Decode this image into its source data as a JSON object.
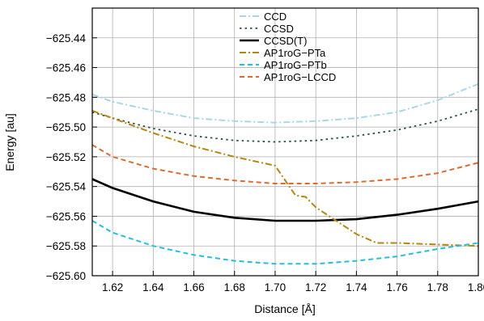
{
  "chart_data": {
    "type": "line",
    "title": "",
    "xlabel": "Distance [Å]",
    "ylabel": "Energy [au]",
    "xlim": [
      1.61,
      1.8
    ],
    "ylim": [
      -625.6,
      -625.42
    ],
    "xticks": [
      1.62,
      1.64,
      1.66,
      1.68,
      1.7,
      1.72,
      1.74,
      1.76,
      1.78,
      1.8
    ],
    "xtick_labels": [
      "1.62",
      "1.64",
      "1.66",
      "1.68",
      "1.70",
      "1.72",
      "1.74",
      "1.76",
      "1.78",
      "1.80"
    ],
    "yticks": [
      -625.44,
      -625.46,
      -625.48,
      -625.5,
      -625.52,
      -625.54,
      -625.56,
      -625.58,
      -625.6
    ],
    "ytick_labels": [
      "−625.44",
      "−625.46",
      "−625.48",
      "−625.50",
      "−625.52",
      "−625.54",
      "−625.56",
      "−625.58",
      "−625.60"
    ],
    "grid": true,
    "legend_position": "top-right",
    "series": [
      {
        "name": "CCD",
        "color": "#a8d8e8",
        "dash": "dashdot",
        "x": [
          1.61,
          1.62,
          1.64,
          1.66,
          1.68,
          1.7,
          1.72,
          1.74,
          1.76,
          1.78,
          1.8
        ],
        "y": [
          -625.478,
          -625.483,
          -625.489,
          -625.494,
          -625.496,
          -625.497,
          -625.496,
          -625.494,
          -625.49,
          -625.482,
          -625.471
        ]
      },
      {
        "name": "CCSD",
        "color": "#2f4f4f",
        "dash": "dot",
        "x": [
          1.61,
          1.62,
          1.64,
          1.66,
          1.68,
          1.7,
          1.72,
          1.74,
          1.76,
          1.78,
          1.8
        ],
        "y": [
          -625.49,
          -625.494,
          -625.501,
          -625.506,
          -625.509,
          -625.51,
          -625.509,
          -625.506,
          -625.502,
          -625.496,
          -625.488
        ]
      },
      {
        "name": "CCSD(T)",
        "color": "#000000",
        "dash": "solid",
        "x": [
          1.61,
          1.62,
          1.64,
          1.66,
          1.68,
          1.7,
          1.72,
          1.74,
          1.76,
          1.78,
          1.8
        ],
        "y": [
          -625.535,
          -625.541,
          -625.55,
          -625.557,
          -625.561,
          -625.563,
          -625.563,
          -625.562,
          -625.559,
          -625.555,
          -625.55
        ]
      },
      {
        "name": "AP1roG−PTa",
        "color": "#b8860b",
        "dash": "dashdot",
        "x": [
          1.61,
          1.62,
          1.64,
          1.66,
          1.68,
          1.7,
          1.71,
          1.715,
          1.72,
          1.73,
          1.74,
          1.75,
          1.76,
          1.78,
          1.8
        ],
        "y": [
          -625.489,
          -625.494,
          -625.504,
          -625.513,
          -625.52,
          -625.526,
          -625.546,
          -625.547,
          -625.554,
          -625.563,
          -625.572,
          -625.578,
          -625.578,
          -625.579,
          -625.58
        ]
      },
      {
        "name": "AP1roG−PTb",
        "color": "#1ec0e0",
        "dash": "dash",
        "x": [
          1.61,
          1.62,
          1.64,
          1.66,
          1.68,
          1.7,
          1.72,
          1.74,
          1.76,
          1.78,
          1.8
        ],
        "y": [
          -625.563,
          -625.571,
          -625.58,
          -625.586,
          -625.59,
          -625.592,
          -625.592,
          -625.59,
          -625.587,
          -625.582,
          -625.578
        ]
      },
      {
        "name": "AP1roG−LCCD",
        "color": "#e06a2e",
        "dash": "dash",
        "x": [
          1.61,
          1.62,
          1.64,
          1.66,
          1.68,
          1.7,
          1.72,
          1.74,
          1.76,
          1.78,
          1.8
        ],
        "y": [
          -625.512,
          -625.52,
          -625.528,
          -625.533,
          -625.536,
          -625.538,
          -625.538,
          -625.537,
          -625.535,
          -625.531,
          -625.524
        ]
      }
    ]
  }
}
